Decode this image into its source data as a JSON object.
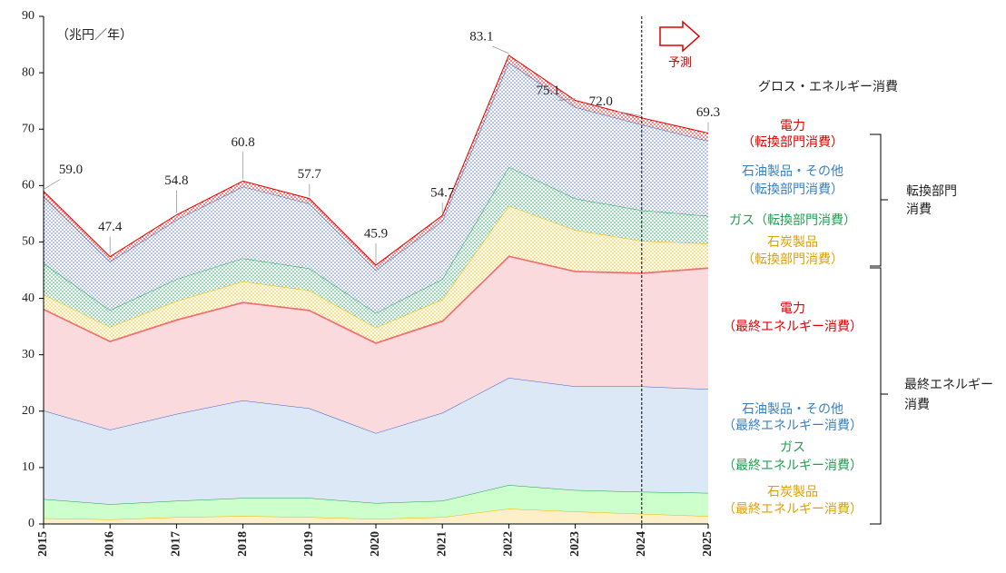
{
  "chart_data": {
    "type": "stacked-area",
    "unit_label": "（兆円／年）",
    "forecast_label": "予測",
    "forecast_start": 2024,
    "x": [
      2015,
      2016,
      2017,
      2018,
      2019,
      2020,
      2021,
      2022,
      2023,
      2024,
      2025
    ],
    "xlim": [
      2015,
      2025
    ],
    "xticks": [
      2015,
      2016,
      2017,
      2018,
      2019,
      2020,
      2021,
      2022,
      2023,
      2024,
      2025
    ],
    "ylim": [
      0,
      90
    ],
    "yticks": [
      0,
      10,
      20,
      30,
      40,
      50,
      60,
      70,
      80,
      90
    ],
    "grid": false,
    "series": [
      {
        "name": [
          "石炭製品",
          "（最終エネルギー消費）"
        ],
        "color": "#f0b400",
        "fill": "#fdf0c8",
        "fill_style": "solid",
        "values": [
          1.0,
          0.8,
          1.2,
          1.4,
          1.2,
          0.9,
          1.2,
          2.7,
          2.2,
          1.8,
          1.4
        ]
      },
      {
        "name": [
          "ガス",
          "（最終エネルギー消費）"
        ],
        "color": "#1aa04a",
        "fill": "#ccffcc",
        "fill_style": "solid",
        "values": [
          3.4,
          2.7,
          2.9,
          3.2,
          3.4,
          2.8,
          2.9,
          4.2,
          3.8,
          3.9,
          4.1
        ]
      },
      {
        "name": [
          "石油製品・その他",
          "（最終エネルギー消費）"
        ],
        "color": "#3f62c4",
        "fill": "#dce8f5",
        "fill_style": "solid",
        "values": [
          15.7,
          13.2,
          15.4,
          17.3,
          15.9,
          12.4,
          15.6,
          19.0,
          18.4,
          18.7,
          18.4
        ]
      },
      {
        "name": [
          "電力",
          "（最終エネルギー消費）"
        ],
        "color": "#f07070",
        "fill": "#fadadd",
        "fill_style": "solid",
        "values": [
          18.1,
          15.8,
          16.8,
          17.5,
          17.5,
          16.1,
          16.4,
          21.7,
          20.5,
          20.2,
          21.6
        ]
      },
      {
        "name": [
          "石炭製品",
          "（転換部門消費）"
        ],
        "color": "#f0b400",
        "fill": "#f5c000",
        "fill_style": "dots",
        "values": [
          2.5,
          2.4,
          3.2,
          3.6,
          3.4,
          2.6,
          3.7,
          8.8,
          7.2,
          5.6,
          4.2
        ]
      },
      {
        "name": [
          "ガス（転換部門消費）"
        ],
        "color": "#1aa04a",
        "fill": "#20b060",
        "fill_style": "dots",
        "values": [
          5.5,
          3.0,
          3.9,
          4.1,
          3.9,
          2.6,
          3.6,
          6.9,
          5.6,
          5.4,
          4.9
        ]
      },
      {
        "name": [
          "石油製品・その他",
          "（転換部門消費）"
        ],
        "color": "#3f62c4",
        "fill": "#5c7cd0",
        "fill_style": "dots",
        "values": [
          11.8,
          8.6,
          10.5,
          12.7,
          11.5,
          7.6,
          10.3,
          18.5,
          16.2,
          15.2,
          13.3
        ]
      },
      {
        "name": [
          "電力",
          "（転換部門消費）"
        ],
        "color": "#e00000",
        "fill": "#e00000",
        "fill_style": "dots",
        "values": [
          1.0,
          0.9,
          0.9,
          1.0,
          0.9,
          0.9,
          1.0,
          1.3,
          1.2,
          1.2,
          1.4
        ]
      }
    ],
    "label_colors": [
      "#e0a000",
      "#20a050",
      "#3a80c0",
      "#e00000",
      "#e0a000",
      "#20a050",
      "#3a80c0",
      "#e00000"
    ],
    "totals": {
      "name": "グロス・エネルギー消費",
      "values": [
        59.0,
        47.4,
        54.8,
        60.8,
        57.7,
        45.9,
        54.7,
        83.1,
        75.1,
        72.0,
        69.3
      ],
      "value_labels": [
        "59.0",
        "47.4",
        "54.8",
        "60.8",
        "57.7",
        "45.9",
        "54.7",
        "83.1",
        "75.1",
        "72.0",
        "69.3"
      ]
    },
    "groups": [
      {
        "label": [
          "転換部門",
          "消費"
        ]
      },
      {
        "label": [
          "最終エネルギー",
          "消費"
        ]
      }
    ]
  }
}
